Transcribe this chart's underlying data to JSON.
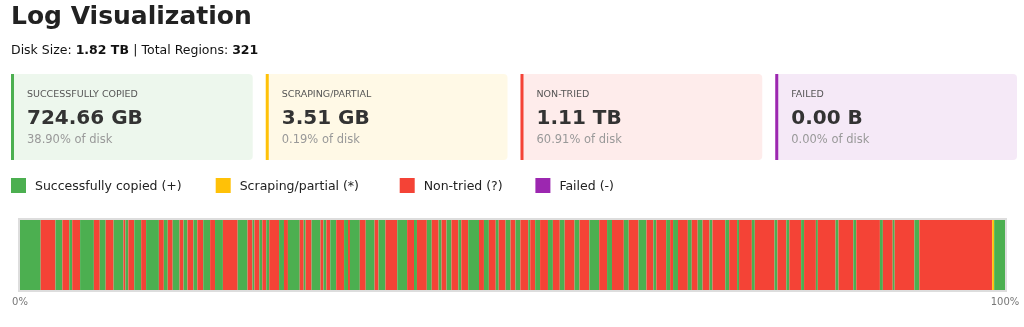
{
  "chart_data": [
    {
      "type": "other",
      "title": "Log Visualization",
      "subtitle": "Disk Size: 1.82 TB | Total Regions: 321",
      "categories": [
        "SUCCESSFULLY COPIED",
        "SCRAPING/PARTIAL",
        "NON-TRIED",
        "FAILED"
      ],
      "value_labels": [
        "724.66 GB",
        "3.51 GB",
        "1.11 TB",
        "0.00 B"
      ],
      "annotations": [
        "38.90% of disk",
        "0.19% of disk",
        "60.91% of disk",
        "0.00% of disk"
      ],
      "colors": [
        "#4caf50",
        "#ffc107",
        "#f44336",
        "#9c27b0"
      ]
    },
    {
      "type": "bar",
      "orientation": "horizontal",
      "stacked": true,
      "categories": [
        null
      ],
      "xlim": [
        0,
        100
      ],
      "xticks": [
        {
          "value": 0,
          "label": "0%"
        },
        {
          "value": 100,
          "label": "100%"
        }
      ],
      "legend": "top left",
      "series": [
        {
          "name": "Successfully copied (+)",
          "color": "#4caf50",
          "values": [
            2.1
          ]
        },
        {
          "name": "Non-tried (?)",
          "color": "#f44336",
          "values": [
            1.5
          ]
        },
        {
          "color": "#4caf50",
          "values": [
            0.7
          ]
        },
        {
          "color": "#f44336",
          "values": [
            0.7
          ]
        },
        {
          "color": "#4caf50",
          "values": [
            0.3
          ]
        },
        {
          "color": "#f44336",
          "values": [
            0.8
          ]
        },
        {
          "color": "#4caf50",
          "values": [
            1.4
          ]
        },
        {
          "color": "#f44336",
          "values": [
            0.6
          ]
        },
        {
          "color": "#4caf50",
          "values": [
            0.6
          ]
        },
        {
          "color": "#f44336",
          "values": [
            0.8
          ]
        },
        {
          "color": "#4caf50",
          "values": [
            1.0
          ]
        },
        {
          "color": "#f44336",
          "values": [
            0.2
          ]
        },
        {
          "color": "#4caf50",
          "values": [
            0.3
          ]
        },
        {
          "color": "#f44336",
          "values": [
            0.6
          ]
        },
        {
          "color": "#4caf50",
          "values": [
            0.7
          ]
        },
        {
          "color": "#f44336",
          "values": [
            0.5
          ]
        },
        {
          "color": "#4caf50",
          "values": [
            1.3
          ]
        },
        {
          "color": "#f44336",
          "values": [
            0.5
          ]
        },
        {
          "color": "#4caf50",
          "values": [
            0.4
          ]
        },
        {
          "color": "#f44336",
          "values": [
            0.5
          ]
        },
        {
          "color": "#4caf50",
          "values": [
            0.7
          ]
        },
        {
          "color": "#f44336",
          "values": [
            0.4
          ]
        },
        {
          "color": "#4caf50",
          "values": [
            0.4
          ]
        },
        {
          "color": "#f44336",
          "values": [
            0.6
          ]
        },
        {
          "color": "#4caf50",
          "values": [
            0.4
          ]
        },
        {
          "color": "#f44336",
          "values": [
            0.6
          ]
        },
        {
          "color": "#4caf50",
          "values": [
            0.7
          ]
        },
        {
          "color": "#f44336",
          "values": [
            0.5
          ]
        },
        {
          "color": "#4caf50",
          "values": [
            0.8
          ]
        },
        {
          "color": "#f44336",
          "values": [
            1.5
          ]
        },
        {
          "color": "#4caf50",
          "values": [
            1.0
          ]
        },
        {
          "color": "#f44336",
          "values": [
            0.5
          ]
        },
        {
          "color": "#4caf50",
          "values": [
            0.2
          ]
        },
        {
          "color": "#f44336",
          "values": [
            0.5
          ]
        },
        {
          "color": "#4caf50",
          "values": [
            0.3
          ]
        },
        {
          "color": "#f44336",
          "values": [
            0.4
          ]
        },
        {
          "color": "#4caf50",
          "values": [
            0.3
          ]
        },
        {
          "color": "#f44336",
          "values": [
            1.0
          ]
        },
        {
          "color": "#4caf50",
          "values": [
            0.5
          ]
        },
        {
          "color": "#f44336",
          "values": [
            0.4
          ]
        },
        {
          "color": "#4caf50",
          "values": [
            1.2
          ]
        },
        {
          "color": "#f44336",
          "values": [
            0.4
          ]
        },
        {
          "color": "#4caf50",
          "values": [
            0.2
          ]
        },
        {
          "color": "#f44336",
          "values": [
            0.6
          ]
        },
        {
          "color": "#4caf50",
          "values": [
            0.9
          ]
        },
        {
          "color": "#f44336",
          "values": [
            0.3
          ]
        },
        {
          "color": "#4caf50",
          "values": [
            0.3
          ]
        },
        {
          "color": "#f44336",
          "values": [
            0.4
          ]
        },
        {
          "color": "#4caf50",
          "values": [
            0.6
          ]
        },
        {
          "color": "#f44336",
          "values": [
            0.8
          ]
        },
        {
          "color": "#4caf50",
          "values": [
            0.4
          ]
        },
        {
          "color": "#f44336",
          "values": [
            0.2
          ]
        },
        {
          "color": "#4caf50",
          "values": [
            1.0
          ]
        },
        {
          "color": "#f44336",
          "values": [
            0.6
          ]
        },
        {
          "color": "#4caf50",
          "values": [
            0.9
          ]
        },
        {
          "color": "#f44336",
          "values": [
            0.4
          ]
        },
        {
          "color": "#4caf50",
          "values": [
            0.7
          ]
        },
        {
          "color": "#f44336",
          "values": [
            1.2
          ]
        },
        {
          "color": "#4caf50",
          "values": [
            1.0
          ]
        },
        {
          "color": "#f44336",
          "values": [
            0.7
          ]
        },
        {
          "color": "#4caf50",
          "values": [
            0.3
          ]
        },
        {
          "color": "#f44336",
          "values": [
            1.0
          ]
        },
        {
          "color": "#4caf50",
          "values": [
            0.5
          ]
        },
        {
          "color": "#f44336",
          "values": [
            0.7
          ]
        },
        {
          "color": "#4caf50",
          "values": [
            0.3
          ]
        },
        {
          "color": "#f44336",
          "values": [
            0.5
          ]
        },
        {
          "color": "#4caf50",
          "values": [
            0.5
          ]
        },
        {
          "color": "#f44336",
          "values": [
            0.7
          ]
        },
        {
          "color": "#4caf50",
          "values": [
            0.3
          ]
        },
        {
          "color": "#f44336",
          "values": [
            0.7
          ]
        },
        {
          "color": "#4caf50",
          "values": [
            1.1
          ]
        },
        {
          "color": "#f44336",
          "values": [
            0.5
          ]
        },
        {
          "color": "#4caf50",
          "values": [
            0.5
          ]
        },
        {
          "color": "#f44336",
          "values": [
            0.7
          ]
        },
        {
          "color": "#4caf50",
          "values": [
            0.3
          ]
        },
        {
          "color": "#f44336",
          "values": [
            0.7
          ]
        },
        {
          "color": "#4caf50",
          "values": [
            0.5
          ]
        },
        {
          "color": "#f44336",
          "values": [
            0.5
          ]
        },
        {
          "color": "#4caf50",
          "values": [
            0.5
          ]
        },
        {
          "color": "#f44336",
          "values": [
            0.8
          ]
        },
        {
          "color": "#4caf50",
          "values": [
            0.2
          ]
        },
        {
          "color": "#f44336",
          "values": [
            0.5
          ]
        },
        {
          "color": "#4caf50",
          "values": [
            0.5
          ]
        },
        {
          "color": "#f44336",
          "values": [
            0.8
          ]
        },
        {
          "color": "#4caf50",
          "values": [
            0.5
          ]
        },
        {
          "color": "#f44336",
          "values": [
            0.7
          ]
        },
        {
          "color": "#4caf50",
          "values": [
            0.5
          ]
        },
        {
          "color": "#f44336",
          "values": [
            1.0
          ]
        },
        {
          "color": "#4caf50",
          "values": [
            0.5
          ]
        },
        {
          "color": "#f44336",
          "values": [
            1.0
          ]
        },
        {
          "color": "#4caf50",
          "values": [
            1.0
          ]
        },
        {
          "color": "#f44336",
          "values": [
            0.8
          ]
        },
        {
          "color": "#4caf50",
          "values": [
            0.5
          ]
        },
        {
          "color": "#f44336",
          "values": [
            1.2
          ]
        },
        {
          "color": "#4caf50",
          "values": [
            0.5
          ]
        },
        {
          "color": "#f44336",
          "values": [
            1.0
          ]
        },
        {
          "color": "#4caf50",
          "values": [
            0.8
          ]
        },
        {
          "color": "#f44336",
          "values": [
            0.7
          ]
        },
        {
          "color": "#4caf50",
          "values": [
            0.3
          ]
        },
        {
          "color": "#f44336",
          "values": [
            1.0
          ]
        },
        {
          "color": "#4caf50",
          "values": [
            0.4
          ]
        },
        {
          "color": "#f44336",
          "values": [
            0.3
          ]
        },
        {
          "color": "#4caf50",
          "values": [
            0.5
          ]
        },
        {
          "color": "#f44336",
          "values": [
            1.0
          ]
        },
        {
          "color": "#4caf50",
          "values": [
            0.4
          ]
        },
        {
          "color": "#f44336",
          "values": [
            0.6
          ]
        },
        {
          "color": "#4caf50",
          "values": [
            0.5
          ]
        },
        {
          "color": "#f44336",
          "values": [
            0.7
          ]
        },
        {
          "color": "#4caf50",
          "values": [
            0.3
          ]
        },
        {
          "color": "#f44336",
          "values": [
            1.3
          ]
        },
        {
          "color": "#4caf50",
          "values": [
            0.4
          ]
        },
        {
          "color": "#f44336",
          "values": [
            0.8
          ]
        },
        {
          "color": "#4caf50",
          "values": [
            0.2
          ]
        },
        {
          "color": "#f44336",
          "values": [
            1.3
          ]
        },
        {
          "color": "#4caf50",
          "values": [
            0.3
          ]
        },
        {
          "color": "#f44336",
          "values": [
            2.0
          ]
        },
        {
          "color": "#4caf50",
          "values": [
            0.3
          ]
        },
        {
          "color": "#f44336",
          "values": [
            0.9
          ]
        },
        {
          "color": "#4caf50",
          "values": [
            0.3
          ]
        },
        {
          "color": "#f44336",
          "values": [
            1.2
          ]
        },
        {
          "color": "#4caf50",
          "values": [
            0.3
          ]
        },
        {
          "color": "#f44336",
          "values": [
            1.2
          ]
        },
        {
          "color": "#4caf50",
          "values": [
            0.2
          ]
        },
        {
          "color": "#f44336",
          "values": [
            1.8
          ]
        },
        {
          "color": "#4caf50",
          "values": [
            0.3
          ]
        },
        {
          "color": "#f44336",
          "values": [
            1.5
          ]
        },
        {
          "color": "#4caf50",
          "values": [
            0.3
          ]
        },
        {
          "color": "#f44336",
          "values": [
            2.4
          ]
        },
        {
          "color": "#4caf50",
          "values": [
            0.3
          ]
        },
        {
          "color": "#f44336",
          "values": [
            1.0
          ]
        },
        {
          "color": "#4caf50",
          "values": [
            0.2
          ]
        },
        {
          "color": "#f44336",
          "values": [
            2.0
          ]
        },
        {
          "color": "#4caf50",
          "values": [
            0.5
          ]
        },
        {
          "color": "#f44336",
          "values": [
            7.4
          ]
        },
        {
          "name": "Scraping/partial (*)",
          "color": "#ffc107",
          "values": [
            0.2
          ]
        },
        {
          "color": "#4caf50",
          "values": [
            1.1
          ]
        },
        {
          "name": "Failed (-)",
          "color": "#9c27b0",
          "values": [
            0
          ]
        }
      ]
    }
  ]
}
